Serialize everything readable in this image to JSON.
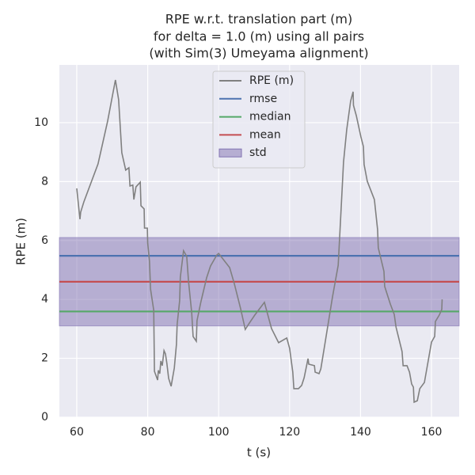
{
  "chart_data": {
    "type": "line",
    "title_lines": [
      "RPE w.r.t. translation part (m)",
      "for delta = 1.0 (m) using all pairs",
      "(with Sim(3) Umeyama alignment)"
    ],
    "xlabel": "t (s)",
    "ylabel": "RPE (m)",
    "xlim": [
      55.1,
      167.8
    ],
    "ylim": [
      0,
      11.96
    ],
    "xticks": [
      60,
      80,
      100,
      120,
      140,
      160
    ],
    "yticks": [
      0,
      2,
      4,
      6,
      8,
      10
    ],
    "grid": true,
    "legend": "upper center",
    "x": [
      60.0,
      60.9,
      61.1,
      62.0,
      66.0,
      67.6,
      68.7,
      70.9,
      71.8,
      72.7,
      73.8,
      74.7,
      75.0,
      75.8,
      76.1,
      76.7,
      77.9,
      78.1,
      79.0,
      79.1,
      79.9,
      80.0,
      80.5,
      80.8,
      81.7,
      81.9,
      82.8,
      83.0,
      83.4,
      83.7,
      84.1,
      84.6,
      85.0,
      85.4,
      85.9,
      86.6,
      87.5,
      88.1,
      88.3,
      89.0,
      89.2,
      90.1,
      91.0,
      91.5,
      92.4,
      92.8,
      93.7,
      93.9,
      95.0,
      96.6,
      97.7,
      99.5,
      100.0,
      103.1,
      104.4,
      106.2,
      107.5,
      108.4,
      110.2,
      112.9,
      114.9,
      116.9,
      119.2,
      120.0,
      120.9,
      121.2,
      122.5,
      123.4,
      124.1,
      125.2,
      125.4,
      127.0,
      127.2,
      128.3,
      128.8,
      129.9,
      132.1,
      133.7,
      134.8,
      135.2,
      136.1,
      137.2,
      137.9,
      138.0,
      138.8,
      140.1,
      140.8,
      141.0,
      141.9,
      143.9,
      144.8,
      145.0,
      146.6,
      146.8,
      148.4,
      149.5,
      150.0,
      151.7,
      152.0,
      153.1,
      153.8,
      154.4,
      154.9,
      155.1,
      156.0,
      156.7,
      158.0,
      160.0,
      160.9,
      161.1,
      162.2,
      162.9,
      163.0
    ],
    "series": [
      {
        "name": "RPE (m)",
        "color": "#808080",
        "values": [
          7.77,
          6.72,
          6.96,
          7.31,
          8.6,
          9.46,
          10.05,
          11.45,
          10.78,
          8.98,
          8.39,
          8.47,
          7.85,
          7.88,
          7.39,
          7.82,
          7.98,
          7.18,
          7.07,
          6.42,
          6.42,
          5.91,
          5.3,
          4.35,
          3.63,
          1.56,
          1.26,
          1.59,
          1.48,
          1.91,
          1.75,
          2.26,
          2.15,
          1.83,
          1.32,
          1.05,
          1.67,
          2.47,
          3.15,
          3.95,
          4.76,
          5.65,
          5.46,
          4.62,
          3.55,
          2.74,
          2.58,
          3.28,
          3.92,
          4.73,
          5.13,
          5.51,
          5.56,
          5.08,
          4.54,
          3.68,
          2.98,
          3.15,
          3.47,
          3.9,
          3.01,
          2.53,
          2.69,
          2.34,
          1.53,
          0.97,
          0.97,
          1.08,
          1.34,
          1.99,
          1.8,
          1.75,
          1.53,
          1.48,
          1.64,
          2.45,
          4.09,
          5.16,
          7.72,
          8.66,
          9.76,
          10.73,
          11.05,
          10.59,
          10.24,
          9.52,
          9.19,
          8.58,
          8.01,
          7.39,
          6.37,
          5.75,
          4.95,
          4.44,
          3.84,
          3.49,
          3.06,
          2.23,
          1.75,
          1.75,
          1.53,
          1.13,
          1.02,
          0.51,
          0.56,
          0.97,
          1.18,
          2.55,
          2.74,
          3.25,
          3.47,
          3.66,
          4.0
        ]
      }
    ],
    "hlines": [
      {
        "name": "rmse",
        "color": "#4c72b0",
        "value": 5.48
      },
      {
        "name": "median",
        "color": "#55a868",
        "value": 3.59
      },
      {
        "name": "mean",
        "color": "#c44e52",
        "value": 4.6
      }
    ],
    "band": {
      "name": "std",
      "color": "#8172b2",
      "value": 1.5
    }
  }
}
